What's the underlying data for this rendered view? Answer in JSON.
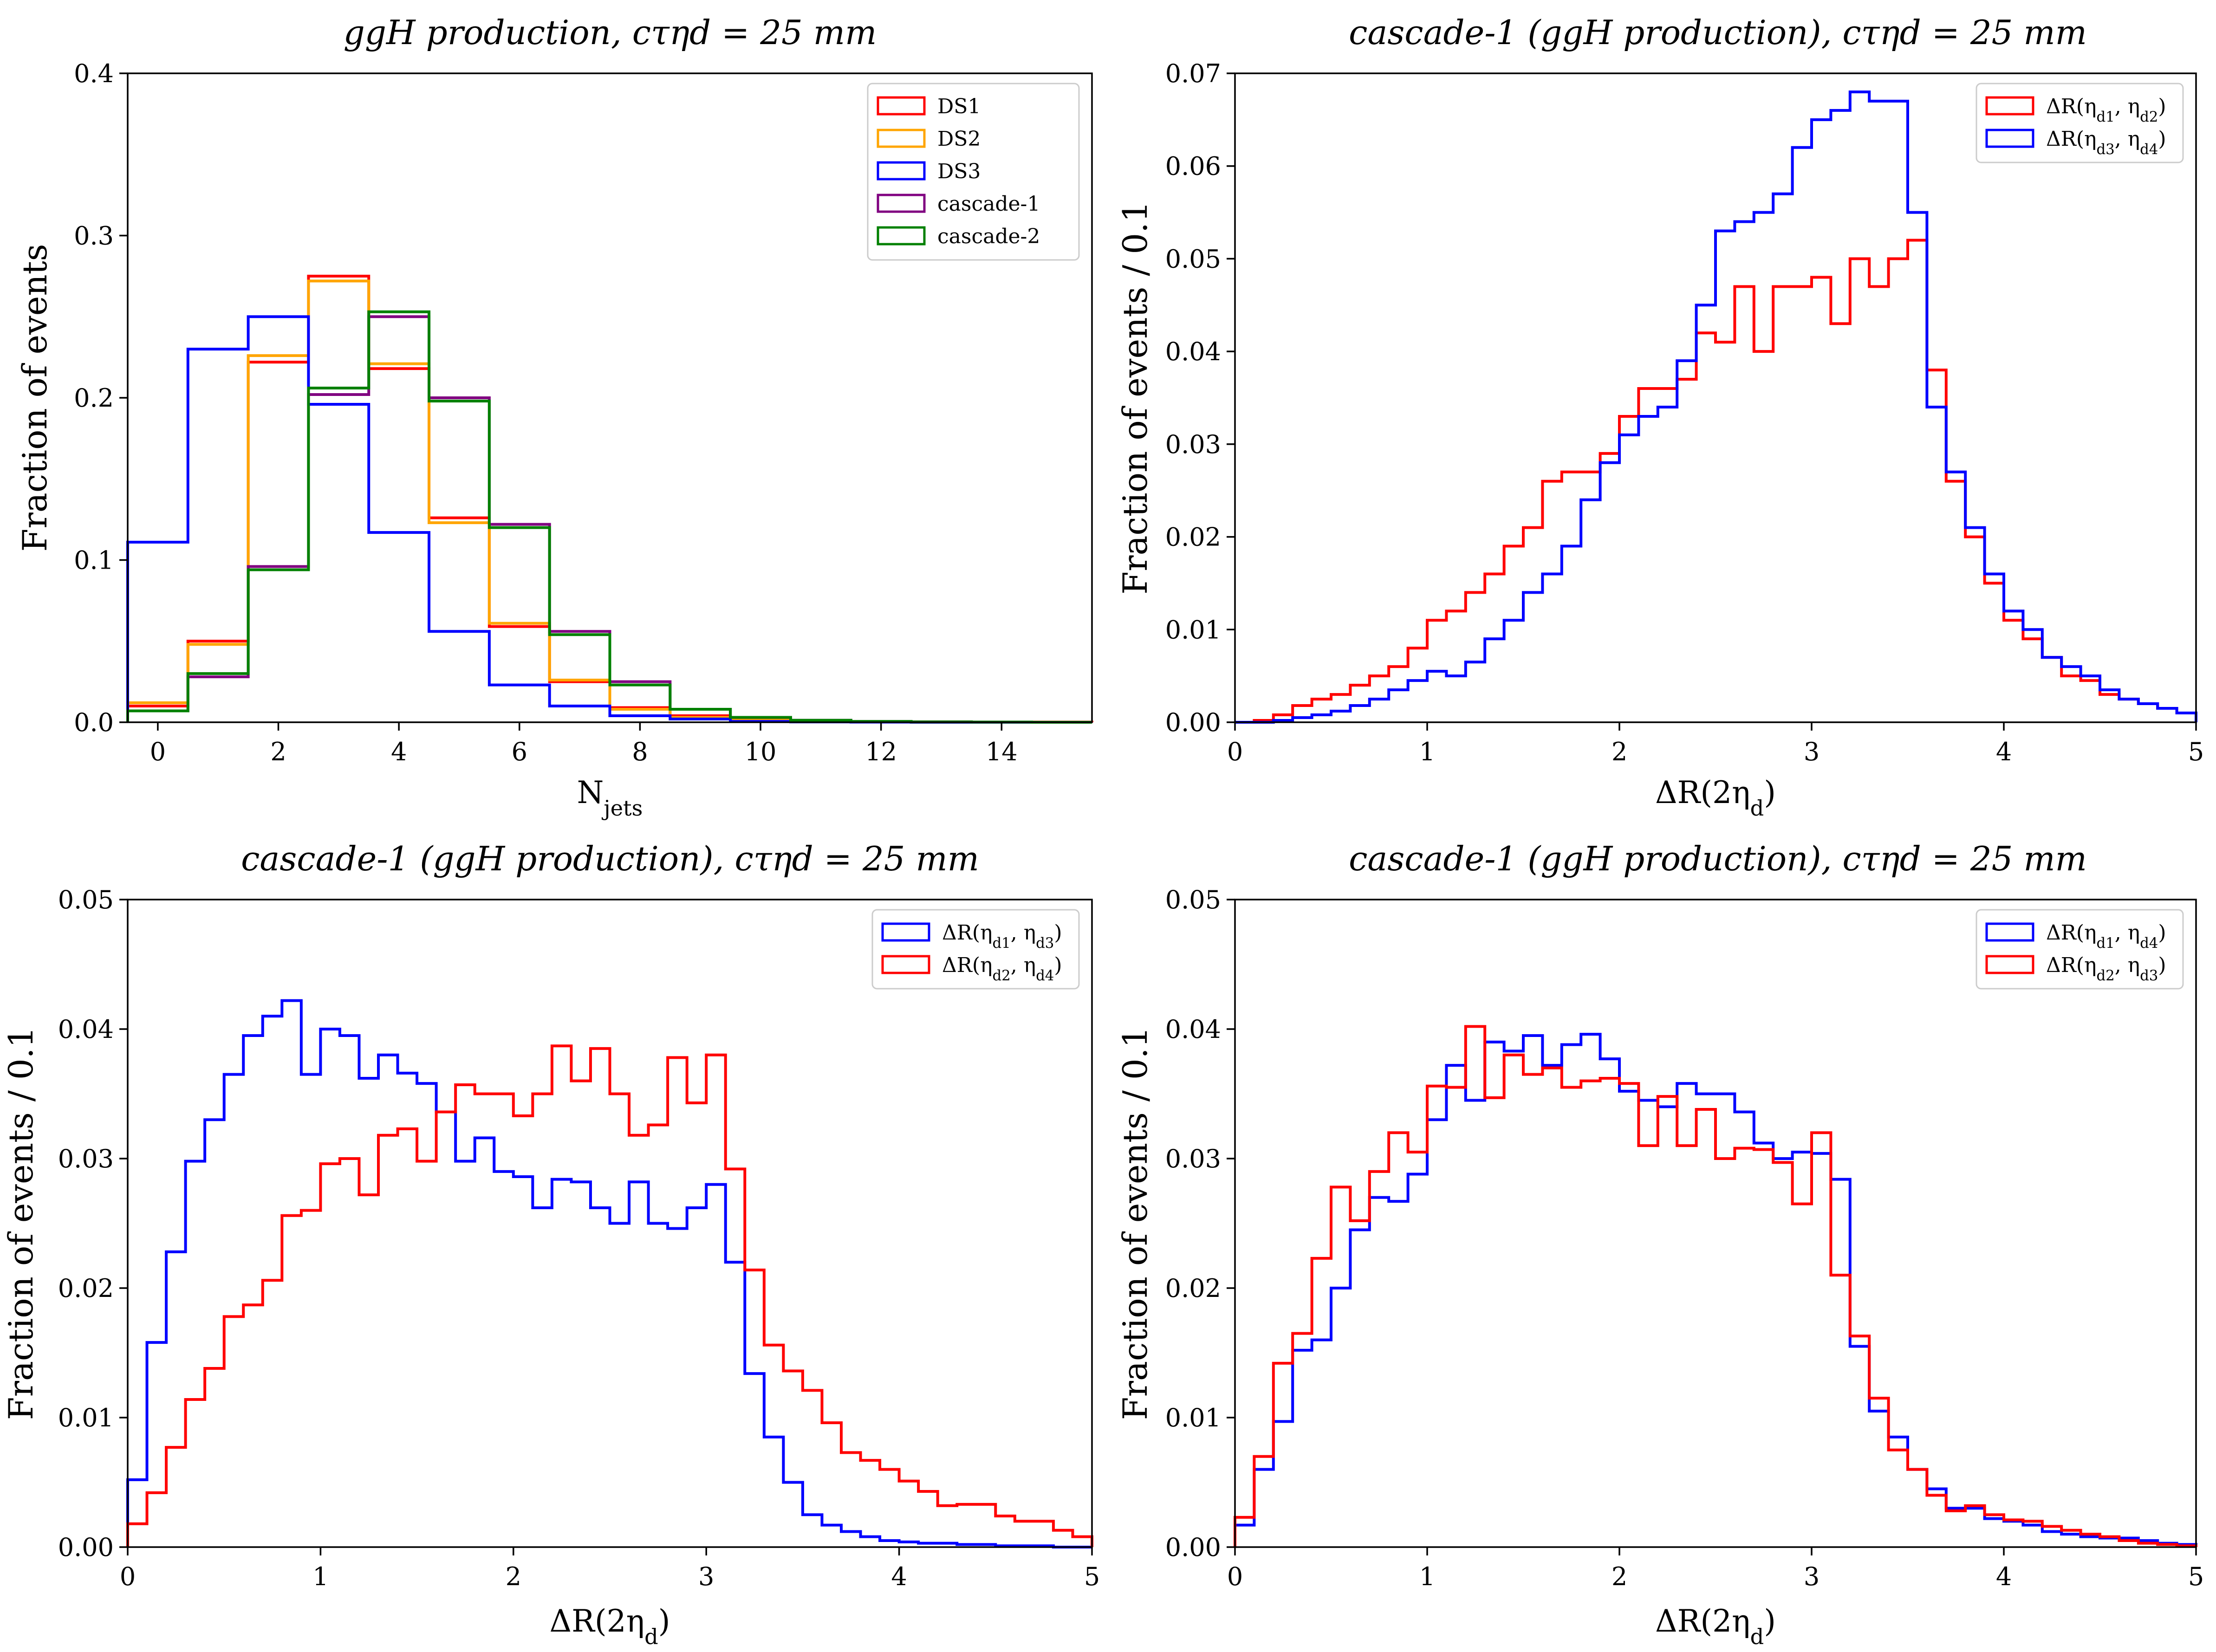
{
  "chart_data": [
    {
      "type": "step-histogram",
      "title": "ggH production, cτ_ηd = 25 mm",
      "xlabel": "N_jets",
      "ylabel": "Fraction of events",
      "xlim": [
        -0.5,
        15.5
      ],
      "ylim": [
        0,
        0.4
      ],
      "xticks": [
        "0",
        "2",
        "4",
        "6",
        "8",
        "10",
        "12",
        "14"
      ],
      "yticks": [
        "0.0",
        "0.1",
        "0.2",
        "0.3",
        "0.4"
      ],
      "bin_start": -0.5,
      "bin_width": 1,
      "legend_position": "top-right",
      "series": [
        {
          "name": "DS1",
          "color": "#ff0000",
          "values": [
            0.01,
            0.05,
            0.222,
            0.275,
            0.218,
            0.126,
            0.059,
            0.025,
            0.009,
            0.004,
            0.0015,
            0.0008,
            0.0004,
            0.0002,
            0.0001,
            0.0001
          ]
        },
        {
          "name": "DS2",
          "color": "#ffa500",
          "values": [
            0.012,
            0.048,
            0.226,
            0.272,
            0.221,
            0.123,
            0.061,
            0.026,
            0.008,
            0.003,
            0.0012,
            0.0006,
            0.0003,
            0.0001,
            0.0001,
            0.0
          ]
        },
        {
          "name": "DS3",
          "color": "#0000ff",
          "values": [
            0.111,
            0.23,
            0.25,
            0.196,
            0.117,
            0.056,
            0.023,
            0.01,
            0.004,
            0.002,
            0.0005,
            0.0002,
            0.0001,
            0.0,
            0.0,
            0.0
          ]
        },
        {
          "name": "cascade-1",
          "color": "#800080",
          "values": [
            0.007,
            0.028,
            0.096,
            0.202,
            0.25,
            0.2,
            0.122,
            0.056,
            0.025,
            0.008,
            0.003,
            0.0012,
            0.0005,
            0.0002,
            0.0001,
            0.0
          ]
        },
        {
          "name": "cascade-2",
          "color": "#008000",
          "values": [
            0.007,
            0.03,
            0.094,
            0.206,
            0.253,
            0.198,
            0.12,
            0.054,
            0.023,
            0.008,
            0.003,
            0.0012,
            0.0005,
            0.0002,
            0.0001,
            0.0
          ]
        }
      ]
    },
    {
      "type": "step-histogram",
      "title": "cascade-1 (ggH production), cτ_ηd = 25 mm",
      "xlabel": "ΔR(2η_d)",
      "ylabel": "Fraction of events / 0.1",
      "xlim": [
        0,
        5
      ],
      "ylim": [
        0,
        0.07
      ],
      "xticks": [
        "0",
        "1",
        "2",
        "3",
        "4",
        "5"
      ],
      "yticks": [
        "0.00",
        "0.01",
        "0.02",
        "0.03",
        "0.04",
        "0.05",
        "0.06",
        "0.07"
      ],
      "bin_start": 0,
      "bin_width": 0.1,
      "legend_position": "top-right",
      "series": [
        {
          "name": "ΔR(η_d1, η_d2)",
          "color": "#ff0000",
          "values": [
            0.0,
            0.0002,
            0.0008,
            0.0018,
            0.0025,
            0.003,
            0.004,
            0.005,
            0.006,
            0.008,
            0.011,
            0.012,
            0.014,
            0.016,
            0.019,
            0.021,
            0.026,
            0.027,
            0.027,
            0.029,
            0.033,
            0.036,
            0.036,
            0.037,
            0.042,
            0.041,
            0.047,
            0.04,
            0.047,
            0.047,
            0.048,
            0.043,
            0.05,
            0.047,
            0.05,
            0.052,
            0.038,
            0.026,
            0.02,
            0.015,
            0.011,
            0.009,
            0.007,
            0.005,
            0.0045,
            0.003,
            0.0025,
            0.002,
            0.0015,
            0.001
          ]
        },
        {
          "name": "ΔR(η_d3, η_d4)",
          "color": "#0000ff",
          "values": [
            0.0,
            0.0,
            0.0002,
            0.0005,
            0.0008,
            0.0012,
            0.0018,
            0.0025,
            0.0035,
            0.0045,
            0.0055,
            0.005,
            0.0065,
            0.009,
            0.011,
            0.014,
            0.016,
            0.019,
            0.024,
            0.028,
            0.031,
            0.033,
            0.034,
            0.039,
            0.045,
            0.053,
            0.054,
            0.055,
            0.057,
            0.062,
            0.065,
            0.066,
            0.068,
            0.067,
            0.067,
            0.055,
            0.034,
            0.027,
            0.021,
            0.016,
            0.012,
            0.01,
            0.007,
            0.006,
            0.005,
            0.0035,
            0.0025,
            0.002,
            0.0015,
            0.001
          ]
        }
      ]
    },
    {
      "type": "step-histogram",
      "title": "cascade-1 (ggH production), cτ_ηd = 25 mm",
      "xlabel": "ΔR(2η_d)",
      "ylabel": "Fraction of events / 0.1",
      "xlim": [
        0,
        5
      ],
      "ylim": [
        0,
        0.05
      ],
      "xticks": [
        "0",
        "1",
        "2",
        "3",
        "4",
        "5"
      ],
      "yticks": [
        "0.00",
        "0.01",
        "0.02",
        "0.03",
        "0.04",
        "0.05"
      ],
      "bin_start": 0,
      "bin_width": 0.1,
      "legend_position": "top-right",
      "series": [
        {
          "name": "ΔR(η_d1, η_d3)",
          "color": "#0000ff",
          "values": [
            0.0052,
            0.0158,
            0.0228,
            0.0298,
            0.033,
            0.0365,
            0.0395,
            0.041,
            0.0422,
            0.0365,
            0.04,
            0.0395,
            0.0362,
            0.038,
            0.0366,
            0.0358,
            0.0336,
            0.0298,
            0.0316,
            0.029,
            0.0286,
            0.0262,
            0.0284,
            0.0282,
            0.0262,
            0.025,
            0.0282,
            0.025,
            0.0246,
            0.0262,
            0.028,
            0.022,
            0.0134,
            0.0085,
            0.005,
            0.0025,
            0.0017,
            0.0012,
            0.0008,
            0.0005,
            0.0004,
            0.0003,
            0.0003,
            0.0002,
            0.0002,
            0.0001,
            0.0001,
            0.0001,
            0.0,
            0.0
          ]
        },
        {
          "name": "ΔR(η_d2, η_d4)",
          "color": "#ff0000",
          "values": [
            0.0018,
            0.0042,
            0.0077,
            0.0114,
            0.0138,
            0.0178,
            0.0187,
            0.0206,
            0.0256,
            0.026,
            0.0296,
            0.03,
            0.0272,
            0.0318,
            0.0323,
            0.0298,
            0.0336,
            0.0357,
            0.035,
            0.035,
            0.0333,
            0.035,
            0.0387,
            0.036,
            0.0385,
            0.035,
            0.0318,
            0.0326,
            0.0378,
            0.0343,
            0.038,
            0.0292,
            0.0214,
            0.0156,
            0.0136,
            0.0121,
            0.0096,
            0.0073,
            0.0067,
            0.006,
            0.0051,
            0.0043,
            0.0032,
            0.0033,
            0.0033,
            0.0024,
            0.002,
            0.002,
            0.0013,
            0.0008
          ]
        }
      ]
    },
    {
      "type": "step-histogram",
      "title": "cascade-1 (ggH production), cτ_ηd = 25 mm",
      "xlabel": "ΔR(2η_d)",
      "ylabel": "Fraction of events / 0.1",
      "xlim": [
        0,
        5
      ],
      "ylim": [
        0,
        0.05
      ],
      "xticks": [
        "0",
        "1",
        "2",
        "3",
        "4",
        "5"
      ],
      "yticks": [
        "0.00",
        "0.01",
        "0.02",
        "0.03",
        "0.04",
        "0.05"
      ],
      "bin_start": 0,
      "bin_width": 0.1,
      "legend_position": "top-right",
      "series": [
        {
          "name": "ΔR(η_d1, η_d4)",
          "color": "#0000ff",
          "values": [
            0.0017,
            0.006,
            0.0097,
            0.0152,
            0.016,
            0.02,
            0.0245,
            0.027,
            0.0267,
            0.0288,
            0.033,
            0.0372,
            0.0345,
            0.039,
            0.0383,
            0.0395,
            0.0372,
            0.0388,
            0.0396,
            0.0377,
            0.0352,
            0.0345,
            0.034,
            0.0358,
            0.035,
            0.035,
            0.0336,
            0.0312,
            0.03,
            0.0305,
            0.0304,
            0.0284,
            0.0155,
            0.0105,
            0.0085,
            0.006,
            0.0045,
            0.003,
            0.003,
            0.0022,
            0.002,
            0.0017,
            0.0012,
            0.001,
            0.0008,
            0.0007,
            0.0007,
            0.0005,
            0.0003,
            0.0002
          ]
        },
        {
          "name": "ΔR(η_d2, η_d3)",
          "color": "#ff0000",
          "values": [
            0.0023,
            0.007,
            0.0142,
            0.0165,
            0.0223,
            0.0278,
            0.0252,
            0.029,
            0.032,
            0.0305,
            0.0356,
            0.0355,
            0.0402,
            0.0347,
            0.038,
            0.0365,
            0.037,
            0.0355,
            0.036,
            0.0362,
            0.0358,
            0.031,
            0.0348,
            0.031,
            0.0338,
            0.03,
            0.0308,
            0.0307,
            0.0297,
            0.0265,
            0.032,
            0.021,
            0.0163,
            0.0115,
            0.0075,
            0.006,
            0.004,
            0.0028,
            0.0032,
            0.0025,
            0.0021,
            0.002,
            0.0016,
            0.0013,
            0.001,
            0.0008,
            0.0005,
            0.0003,
            0.0002,
            0.0001
          ]
        }
      ]
    }
  ]
}
